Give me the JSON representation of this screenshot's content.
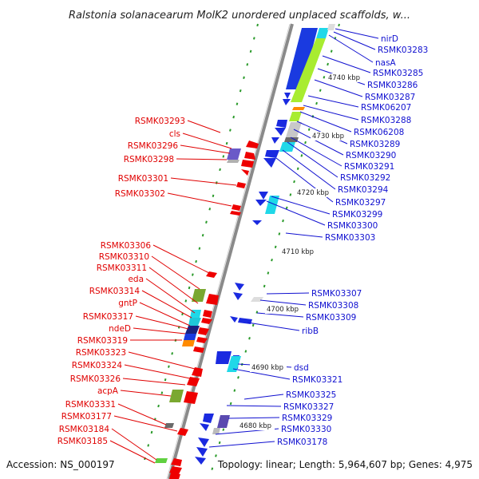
{
  "title": "Ralstonia solanacearum MolK2 unordered unplaced scaffolds, w...",
  "footer": {
    "accession": "Accession: NS_000197",
    "topology": "Topology: linear; Length: 5,964,607 bp; Genes: 4,975"
  },
  "ticks": [
    "4740 kbp",
    "4730 kbp",
    "4720 kbp",
    "4710 kbp",
    "4700 kbp",
    "4690 kbp",
    "4680 kbp"
  ],
  "left_labels": [
    "RSMK03293",
    "cls",
    "RSMK03296",
    "RSMK03298",
    "RSMK03301",
    "RSMK03302",
    "RSMK03306",
    "RSMK03310",
    "RSMK03311",
    "eda",
    "RSMK03314",
    "gntP",
    "RSMK03317",
    "ndeD",
    "RSMK03319",
    "RSMK03323",
    "RSMK03324",
    "RSMK03326",
    "acpA",
    "RSMK03331",
    "RSMK03177",
    "RSMK03184",
    "RSMK03185"
  ],
  "right_labels": [
    "nirD",
    "RSMK03283",
    "nasA",
    "RSMK03285",
    "RSMK03286",
    "RSMK03287",
    "RSMK06207",
    "RSMK03288",
    "RSMK06208",
    "RSMK03289",
    "RSMK03290",
    "RSMK03291",
    "RSMK03292",
    "RSMK03294",
    "RSMK03297",
    "RSMK03299",
    "RSMK03300",
    "RSMK03303",
    "RSMK03307",
    "RSMK03308",
    "RSMK03309",
    "ribB",
    "dsd",
    "RSMK03321",
    "RSMK03325",
    "RSMK03327",
    "RSMK03329",
    "RSMK03330",
    "RSMK03178"
  ],
  "colors": {
    "left": "#e00000",
    "right": "#1010d0",
    "backbone": "#888888"
  }
}
